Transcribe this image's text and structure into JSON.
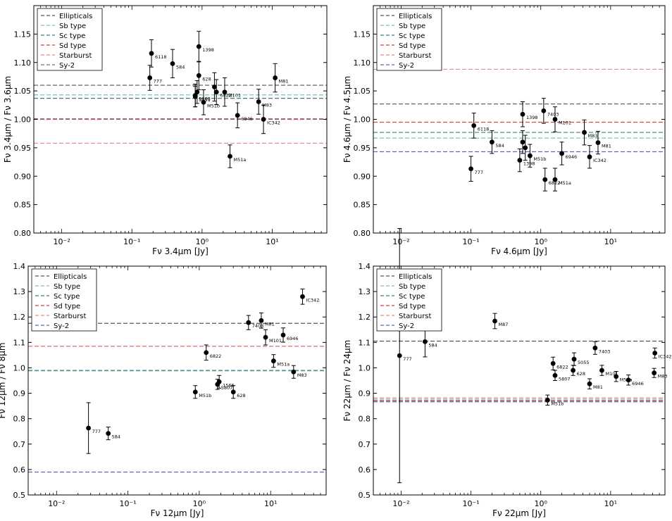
{
  "figure_title": "",
  "chart_data": [
    {
      "type": "scatter",
      "id": "p1",
      "xlabel": "Fν 3.4μm [Jy]",
      "ylabel": "Fν 3.4μm / Fν 3.6μm",
      "xscale": "log",
      "xlim": [
        0.004,
        60
      ],
      "ylim": [
        0.8,
        1.2
      ],
      "yticks": [
        0.8,
        0.85,
        0.9,
        0.95,
        1.0,
        1.05,
        1.1,
        1.15
      ],
      "ytick_labels": [
        "0.80",
        "0.85",
        "0.90",
        "0.95",
        "1.00",
        "1.05",
        "1.10",
        "1.15"
      ],
      "xticks": [
        0.01,
        0.1,
        1,
        10
      ],
      "xtick_labels": [
        "10⁻²",
        "10⁻¹",
        "10⁰",
        "10¹"
      ],
      "legend": {
        "position": "top-left",
        "show": true
      },
      "reference_lines": [
        {
          "name": "Ellipticals",
          "y": 1.06,
          "color": "#555555"
        },
        {
          "name": "Sb type",
          "y": 1.043,
          "color": "#7fbfbf"
        },
        {
          "name": "Sc type",
          "y": 1.037,
          "color": "#3f7f7f"
        },
        {
          "name": "Sd type",
          "y": 1.0,
          "color": "#d24040"
        },
        {
          "name": "Starburst",
          "y": 0.958,
          "color": "#e8888a"
        },
        {
          "name": "Sy-2",
          "y": 1.001,
          "color": "#886688"
        }
      ],
      "points": [
        {
          "label": "777",
          "x": 0.18,
          "y": 1.073,
          "err": 0.022
        },
        {
          "label": "6118",
          "x": 0.19,
          "y": 1.116,
          "err": 0.024
        },
        {
          "label": "584",
          "x": 0.38,
          "y": 1.098,
          "err": 0.025
        },
        {
          "label": "1398",
          "x": 0.9,
          "y": 1.128,
          "err": 0.027
        },
        {
          "label": "628",
          "x": 0.9,
          "y": 1.077,
          "err": 0.025
        },
        {
          "label": "5063",
          "x": 0.8,
          "y": 1.042,
          "err": 0.02
        },
        {
          "label": "",
          "x": 0.85,
          "y": 1.048,
          "err": 0.02
        },
        {
          "label": "5055",
          "x": 0.8,
          "y": 1.04,
          "err": 0.018
        },
        {
          "label": "M51b",
          "x": 1.05,
          "y": 1.03,
          "err": 0.022
        },
        {
          "label": "",
          "x": 1.5,
          "y": 1.057,
          "err": 0.025
        },
        {
          "label": "6822",
          "x": 1.6,
          "y": 1.048,
          "err": 0.022
        },
        {
          "label": "M101",
          "x": 2.1,
          "y": 1.048,
          "err": 0.025
        },
        {
          "label": "6946",
          "x": 3.2,
          "y": 1.007,
          "err": 0.022
        },
        {
          "label": "M51a",
          "x": 2.5,
          "y": 0.935,
          "err": 0.02
        },
        {
          "label": "M83",
          "x": 6.4,
          "y": 1.031,
          "err": 0.022
        },
        {
          "label": "IC342",
          "x": 7.5,
          "y": 1.0,
          "err": 0.025
        },
        {
          "label": "M81",
          "x": 11,
          "y": 1.073,
          "err": 0.025
        }
      ]
    },
    {
      "type": "scatter",
      "id": "p2",
      "xlabel": "Fν 4.6μm [Jy]",
      "ylabel": "Fν 4.6μm / Fν 4.5μm",
      "xscale": "log",
      "xlim": [
        0.004,
        60
      ],
      "ylim": [
        0.8,
        1.2
      ],
      "yticks": [
        0.8,
        0.85,
        0.9,
        0.95,
        1.0,
        1.05,
        1.1,
        1.15
      ],
      "ytick_labels": [
        "0.80",
        "0.85",
        "0.90",
        "0.95",
        "1.00",
        "1.05",
        "1.10",
        "1.15"
      ],
      "xticks": [
        0.01,
        0.1,
        1,
        10
      ],
      "xtick_labels": [
        "10⁻²",
        "10⁻¹",
        "10⁰",
        "10¹"
      ],
      "legend": {
        "position": "top-left",
        "show": true
      },
      "reference_lines": [
        {
          "name": "Ellipticals",
          "y": 1.027,
          "color": "#555555"
        },
        {
          "name": "Sb type",
          "y": 0.967,
          "color": "#7fbfbf"
        },
        {
          "name": "Sc type",
          "y": 0.977,
          "color": "#3f7f7f"
        },
        {
          "name": "Sd type",
          "y": 0.995,
          "color": "#d24040"
        },
        {
          "name": "Starburst",
          "y": 1.088,
          "color": "#e8888a"
        },
        {
          "name": "Sy-2",
          "y": 0.943,
          "color": "#6666aa"
        }
      ],
      "points": [
        {
          "label": "777",
          "x": 0.1,
          "y": 0.913,
          "err": 0.022
        },
        {
          "label": "6118",
          "x": 0.11,
          "y": 0.989,
          "err": 0.022
        },
        {
          "label": "584",
          "x": 0.2,
          "y": 0.96,
          "err": 0.02
        },
        {
          "label": "1398",
          "x": 0.5,
          "y": 0.928,
          "err": 0.02
        },
        {
          "label": "",
          "x": 0.55,
          "y": 0.96,
          "err": 0.02
        },
        {
          "label": "1398",
          "x": 0.55,
          "y": 1.009,
          "err": 0.022
        },
        {
          "label": "",
          "x": 0.6,
          "y": 0.95,
          "err": 0.022
        },
        {
          "label": "M51b",
          "x": 0.7,
          "y": 0.936,
          "err": 0.02
        },
        {
          "label": "7403",
          "x": 1.1,
          "y": 1.015,
          "err": 0.022
        },
        {
          "label": "M101",
          "x": 1.6,
          "y": 1.0,
          "err": 0.022
        },
        {
          "label": "6822",
          "x": 1.15,
          "y": 0.894,
          "err": 0.02
        },
        {
          "label": "M51a",
          "x": 1.6,
          "y": 0.894,
          "err": 0.02
        },
        {
          "label": "6946",
          "x": 2.0,
          "y": 0.94,
          "err": 0.02
        },
        {
          "label": "M83",
          "x": 4.2,
          "y": 0.977,
          "err": 0.022
        },
        {
          "label": "IC342",
          "x": 5.0,
          "y": 0.934,
          "err": 0.02
        },
        {
          "label": "M81",
          "x": 6.6,
          "y": 0.959,
          "err": 0.02
        }
      ]
    },
    {
      "type": "scatter",
      "id": "p3",
      "xlabel": "Fν 12μm [Jy]",
      "ylabel": "Fν 12μm / Fν 8μm",
      "xscale": "log",
      "xlim": [
        0.004,
        60
      ],
      "ylim": [
        0.5,
        1.4
      ],
      "yticks": [
        0.5,
        0.6,
        0.7,
        0.8,
        0.9,
        1.0,
        1.1,
        1.2,
        1.3,
        1.4
      ],
      "ytick_labels": [
        "0.5",
        "0.6",
        "0.7",
        "0.8",
        "0.9",
        "1.0",
        "1.1",
        "1.2",
        "1.3",
        "1.4"
      ],
      "xticks": [
        0.01,
        0.1,
        1,
        10
      ],
      "xtick_labels": [
        "10⁻²",
        "10⁻¹",
        "10⁰",
        "10¹"
      ],
      "legend": {
        "position": "top-left",
        "show": true
      },
      "reference_lines": [
        {
          "name": "Ellipticals",
          "y": 1.175,
          "color": "#555555"
        },
        {
          "name": "Sb type",
          "y": 0.988,
          "color": "#7fbfbf"
        },
        {
          "name": "Sc type",
          "y": 0.99,
          "color": "#3f7f7f"
        },
        {
          "name": "Sd type",
          "y": 1.085,
          "color": "#d24040"
        },
        {
          "name": "Starburst",
          "y": 1.085,
          "color": "#e8888a"
        },
        {
          "name": "Sy-2",
          "y": 0.59,
          "color": "#6666aa"
        }
      ],
      "points": [
        {
          "label": "777",
          "x": 0.028,
          "y": 0.763,
          "err": 0.1
        },
        {
          "label": "584",
          "x": 0.053,
          "y": 0.742,
          "err": 0.025
        },
        {
          "label": "M51b",
          "x": 0.88,
          "y": 0.905,
          "err": 0.025
        },
        {
          "label": "6822",
          "x": 1.25,
          "y": 1.06,
          "err": 0.03
        },
        {
          "label": "5807",
          "x": 1.8,
          "y": 0.935,
          "err": 0.02
        },
        {
          "label": "1566",
          "x": 1.9,
          "y": 0.945,
          "err": 0.025
        },
        {
          "label": "628",
          "x": 3.0,
          "y": 0.905,
          "err": 0.025
        },
        {
          "label": "7403",
          "x": 4.9,
          "y": 1.178,
          "err": 0.028
        },
        {
          "label": "M81",
          "x": 7.4,
          "y": 1.186,
          "err": 0.03
        },
        {
          "label": "M101",
          "x": 8.5,
          "y": 1.12,
          "err": 0.03
        },
        {
          "label": "M51a",
          "x": 11,
          "y": 1.027,
          "err": 0.025
        },
        {
          "label": "6946",
          "x": 15,
          "y": 1.129,
          "err": 0.028
        },
        {
          "label": "M83",
          "x": 21,
          "y": 0.984,
          "err": 0.025
        },
        {
          "label": "IC342",
          "x": 28,
          "y": 1.28,
          "err": 0.03
        }
      ]
    },
    {
      "type": "scatter",
      "id": "p4",
      "xlabel": "Fν 22μm [Jy]",
      "ylabel": "Fν 22μm / Fν 24μm",
      "xscale": "log",
      "xlim": [
        0.004,
        60
      ],
      "ylim": [
        0.5,
        1.4
      ],
      "yticks": [
        0.5,
        0.6,
        0.7,
        0.8,
        0.9,
        1.0,
        1.1,
        1.2,
        1.3,
        1.4
      ],
      "ytick_labels": [
        "0.5",
        "0.6",
        "0.7",
        "0.8",
        "0.9",
        "1.0",
        "1.1",
        "1.2",
        "1.3",
        "1.4"
      ],
      "xticks": [
        0.01,
        0.1,
        1,
        10
      ],
      "xtick_labels": [
        "10⁻²",
        "10⁻¹",
        "10⁰",
        "10¹"
      ],
      "legend": {
        "position": "top-left",
        "show": true
      },
      "reference_lines": [
        {
          "name": "Ellipticals",
          "y": 1.105,
          "color": "#555555"
        },
        {
          "name": "Sb type",
          "y": 0.877,
          "color": "#7fbfbf"
        },
        {
          "name": "Sc type",
          "y": 0.87,
          "color": "#3f7f7f"
        },
        {
          "name": "Sd type",
          "y": 0.871,
          "color": "#d24040"
        },
        {
          "name": "Starburst",
          "y": 0.882,
          "color": "#e8888a"
        },
        {
          "name": "Sy-2",
          "y": 0.866,
          "color": "#6666aa"
        }
      ],
      "points": [
        {
          "label": "777",
          "x": 0.0095,
          "y": 1.048,
          "err": 0.5
        },
        {
          "label": "584",
          "x": 0.022,
          "y": 1.103,
          "err": 0.06
        },
        {
          "label": "M87",
          "x": 0.22,
          "y": 1.184,
          "err": 0.03
        },
        {
          "label": "M51b",
          "x": 1.25,
          "y": 0.873,
          "err": 0.02
        },
        {
          "label": "6822",
          "x": 1.5,
          "y": 1.017,
          "err": 0.025
        },
        {
          "label": "5807",
          "x": 1.6,
          "y": 0.97,
          "err": 0.02
        },
        {
          "label": "628",
          "x": 2.9,
          "y": 0.99,
          "err": 0.02
        },
        {
          "label": "5055",
          "x": 3.0,
          "y": 1.034,
          "err": 0.025
        },
        {
          "label": "M81",
          "x": 5.0,
          "y": 0.937,
          "err": 0.02
        },
        {
          "label": "7403",
          "x": 6.0,
          "y": 1.078,
          "err": 0.025
        },
        {
          "label": "M101",
          "x": 7.5,
          "y": 0.99,
          "err": 0.02
        },
        {
          "label": "M51a",
          "x": 12,
          "y": 0.966,
          "err": 0.02
        },
        {
          "label": "6946",
          "x": 18,
          "y": 0.952,
          "err": 0.02
        },
        {
          "label": "M83",
          "x": 42,
          "y": 0.98,
          "err": 0.018
        },
        {
          "label": "IC342",
          "x": 43,
          "y": 1.058,
          "err": 0.02
        }
      ]
    }
  ]
}
